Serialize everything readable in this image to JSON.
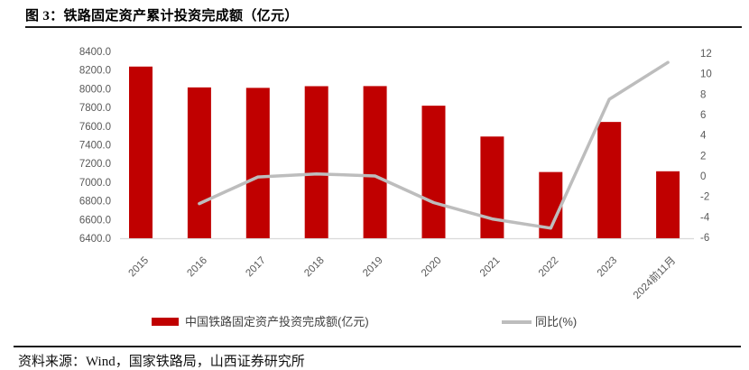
{
  "page": {
    "title": "图 3：铁路固定资产累计投资完成额（亿元）",
    "source_note": "资料来源：Wind，国家铁路局，山西证券研究所"
  },
  "chart_data": {
    "type": "bar",
    "title": "图 3：铁路固定资产累计投资完成额（亿元）",
    "categories": [
      "2015",
      "2016",
      "2017",
      "2018",
      "2019",
      "2020",
      "2021",
      "2022",
      "2023",
      "2024前11月"
    ],
    "series": [
      {
        "name": "中国铁路固定资产投资完成额(亿元)",
        "type": "bar",
        "axis": "left",
        "color": "#C00000",
        "values": [
          8238,
          8015,
          8010,
          8028,
          8029,
          7819,
          7489,
          7109,
          7645,
          7117
        ]
      },
      {
        "name": "同比(%)",
        "type": "line",
        "axis": "right",
        "color": "#BDBDBD",
        "values": [
          null,
          -2.7,
          -0.1,
          0.2,
          0.0,
          -2.6,
          -4.2,
          -5.1,
          7.5,
          11.1
        ]
      }
    ],
    "left_axis": {
      "min": 6400,
      "max": 8400,
      "step": 200,
      "decimals": 1
    },
    "right_axis": {
      "min": -6,
      "max": 12,
      "step": 2,
      "decimals": 0
    },
    "grid": false,
    "legend_position": "bottom",
    "tick_color": "#595959",
    "baseline_color": "#D9D9D9"
  }
}
